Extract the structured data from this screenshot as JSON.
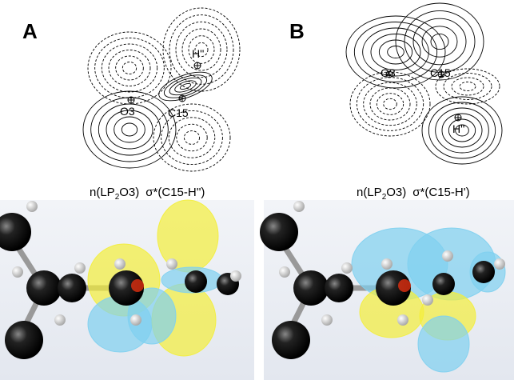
{
  "panels": [
    {
      "label": "A",
      "atoms": [
        "H''",
        "O3",
        "C15"
      ],
      "caption": {
        "orbital1": "n(LP",
        "subscript": "2",
        "orbital1_end": "O3)",
        "orbital2": "σ*(C15-H'')"
      }
    },
    {
      "label": "B",
      "atoms": [
        "O3",
        "C15",
        "H''"
      ],
      "caption": {
        "orbital1": "n(LP",
        "subscript": "2",
        "orbital1_end": "O3)",
        "orbital2": "σ*(C15-H')"
      }
    }
  ]
}
